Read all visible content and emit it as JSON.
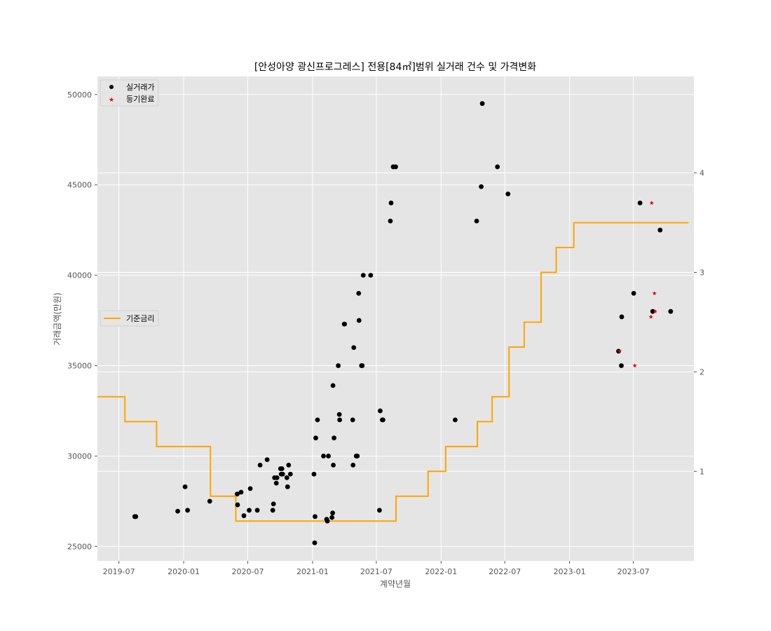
{
  "chart_data": {
    "type": "scatter",
    "title": "[안성아양 광신프로그레스] 전용[84㎡]범위 실거래 건수 및 가격변화",
    "xlabel": "계약년월",
    "ylabel": "거래금액(만원)",
    "x_tick_labels": [
      "2019-07",
      "2020-01",
      "2020-07",
      "2021-01",
      "2021-07",
      "2022-01",
      "2022-07",
      "2023-01",
      "2023-07"
    ],
    "x_tick_dates": [
      "2019-07-01",
      "2020-01-01",
      "2020-07-01",
      "2021-01-01",
      "2021-07-01",
      "2022-01-01",
      "2022-07-01",
      "2023-01-01",
      "2023-07-01"
    ],
    "xlim": [
      "2019-05-01",
      "2023-12-20"
    ],
    "ylim": [
      24200,
      51000
    ],
    "y_ticks": [
      25000,
      30000,
      35000,
      40000,
      45000,
      50000
    ],
    "y_tick_labels": [
      "25000",
      "30000",
      "35000",
      "40000",
      "45000",
      "50000"
    ],
    "y2lim": [
      0.1,
      4.97
    ],
    "y2_ticks": [
      1,
      2,
      3,
      4
    ],
    "y2_tick_labels": [
      "1",
      "2",
      "3",
      "4"
    ],
    "grid": true,
    "legend_price": [
      "top-left"
    ],
    "legend_rate": [
      "center-left"
    ],
    "colors": {
      "background": "#e5e5e5",
      "grid": "#ffffff",
      "price_marker": "#000000",
      "registered_marker": "#e00000",
      "rate_line": "#ffa500"
    },
    "series": [
      {
        "name": "실거래가",
        "kind": "scatter",
        "marker": "circle",
        "points": [
          [
            "2019-08-15",
            26650
          ],
          [
            "2019-08-18",
            26650
          ],
          [
            "2019-12-15",
            26950
          ],
          [
            "2020-01-05",
            28300
          ],
          [
            "2020-01-12",
            27000
          ],
          [
            "2020-03-15",
            27500
          ],
          [
            "2020-06-01",
            27900
          ],
          [
            "2020-06-02",
            27300
          ],
          [
            "2020-06-12",
            28000
          ],
          [
            "2020-06-20",
            26700
          ],
          [
            "2020-07-05",
            27000
          ],
          [
            "2020-07-08",
            28200
          ],
          [
            "2020-07-28",
            27000
          ],
          [
            "2020-08-05",
            29500
          ],
          [
            "2020-08-25",
            29800
          ],
          [
            "2020-09-10",
            27000
          ],
          [
            "2020-09-12",
            27350
          ],
          [
            "2020-09-15",
            28800
          ],
          [
            "2020-09-22",
            28800
          ],
          [
            "2020-09-20",
            28500
          ],
          [
            "2020-10-02",
            29300
          ],
          [
            "2020-10-06",
            29300
          ],
          [
            "2020-10-04",
            29000
          ],
          [
            "2020-10-08",
            29000
          ],
          [
            "2020-10-20",
            28800
          ],
          [
            "2020-10-22",
            28300
          ],
          [
            "2020-10-25",
            29500
          ],
          [
            "2020-10-30",
            29000
          ],
          [
            "2021-01-05",
            29000
          ],
          [
            "2021-01-08",
            26650
          ],
          [
            "2021-01-07",
            25200
          ],
          [
            "2021-01-10",
            31000
          ],
          [
            "2021-01-15",
            32000
          ],
          [
            "2021-02-01",
            30000
          ],
          [
            "2021-02-10",
            26500
          ],
          [
            "2021-02-12",
            26400
          ],
          [
            "2021-02-15",
            30000
          ],
          [
            "2021-02-25",
            26600
          ],
          [
            "2021-02-27",
            26850
          ],
          [
            "2021-02-28",
            33900
          ],
          [
            "2021-03-01",
            29500
          ],
          [
            "2021-03-03",
            31000
          ],
          [
            "2021-03-15",
            35000
          ],
          [
            "2021-03-18",
            32300
          ],
          [
            "2021-03-19",
            32000
          ],
          [
            "2021-04-01",
            37300
          ],
          [
            "2021-04-02",
            37300
          ],
          [
            "2021-04-25",
            32000
          ],
          [
            "2021-04-26",
            29500
          ],
          [
            "2021-04-28",
            36000
          ],
          [
            "2021-05-05",
            30000
          ],
          [
            "2021-05-08",
            30000
          ],
          [
            "2021-05-12",
            39000
          ],
          [
            "2021-05-13",
            37500
          ],
          [
            "2021-05-20",
            35000
          ],
          [
            "2021-05-22",
            35000
          ],
          [
            "2021-05-25",
            40000
          ],
          [
            "2021-06-15",
            40000
          ],
          [
            "2021-07-10",
            27000
          ],
          [
            "2021-07-12",
            32500
          ],
          [
            "2021-07-18",
            32000
          ],
          [
            "2021-07-20",
            32000
          ],
          [
            "2021-08-10",
            43000
          ],
          [
            "2021-08-12",
            44000
          ],
          [
            "2021-08-18",
            46000
          ],
          [
            "2021-08-25",
            46000
          ],
          [
            "2022-02-10",
            32000
          ],
          [
            "2022-04-12",
            43000
          ],
          [
            "2022-04-25",
            44900
          ],
          [
            "2022-04-28",
            49500
          ],
          [
            "2022-06-10",
            46000
          ],
          [
            "2022-07-10",
            44500
          ],
          [
            "2023-05-20",
            35800
          ],
          [
            "2023-05-28",
            35000
          ],
          [
            "2023-05-29",
            37700
          ],
          [
            "2023-07-02",
            39000
          ],
          [
            "2023-07-20",
            44000
          ],
          [
            "2023-08-25",
            38000
          ],
          [
            "2023-09-15",
            42500
          ],
          [
            "2023-10-15",
            38000
          ]
        ]
      },
      {
        "name": "등기완료",
        "kind": "scatter",
        "marker": "star",
        "points": [
          [
            "2023-05-23",
            35800
          ],
          [
            "2023-07-05",
            35000
          ],
          [
            "2023-08-20",
            37700
          ],
          [
            "2023-08-22",
            44000
          ],
          [
            "2023-08-30",
            39000
          ],
          [
            "2023-09-01",
            38000
          ]
        ]
      },
      {
        "name": "기준금리",
        "kind": "step",
        "axis": "right",
        "points": [
          [
            "2019-05-01",
            1.75
          ],
          [
            "2019-07-18",
            1.5
          ],
          [
            "2019-10-16",
            1.25
          ],
          [
            "2020-03-17",
            0.75
          ],
          [
            "2020-05-28",
            0.5
          ],
          [
            "2021-08-26",
            0.75
          ],
          [
            "2021-11-25",
            1.0
          ],
          [
            "2022-01-14",
            1.25
          ],
          [
            "2022-04-14",
            1.5
          ],
          [
            "2022-05-26",
            1.75
          ],
          [
            "2022-07-13",
            2.25
          ],
          [
            "2022-08-25",
            2.5
          ],
          [
            "2022-10-12",
            3.0
          ],
          [
            "2022-11-24",
            3.25
          ],
          [
            "2023-01-13",
            3.5
          ],
          [
            "2023-12-05",
            3.5
          ]
        ]
      }
    ]
  }
}
